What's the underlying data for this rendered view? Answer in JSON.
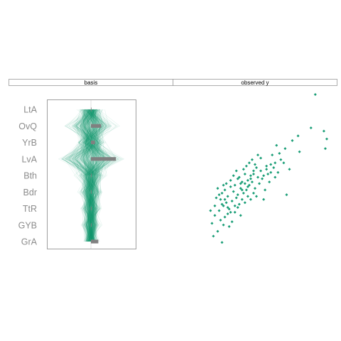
{
  "figure": {
    "accent_color": "#1b9e77",
    "bar_color": "#808080",
    "panel_border_color": "#888888",
    "strip_border_color": "#9a9a9a"
  },
  "chart_data": [
    {
      "type": "parallel-coordinates",
      "strip_title": "basis",
      "variables": [
        "LtA",
        "OvQ",
        "YrB",
        "LvA",
        "Bth",
        "Bdr",
        "TtR",
        "GYB",
        "GrA"
      ],
      "basis_values": [
        0.0,
        0.36,
        0.14,
        0.88,
        0.0,
        0.0,
        0.0,
        0.0,
        0.26
      ],
      "xlim": [
        -1,
        1
      ],
      "line_count": 400,
      "density_note": "lines concentrated near center; wide spread on OvQ and LvA",
      "spread": [
        0.35,
        0.75,
        0.45,
        0.95,
        0.4,
        0.35,
        0.3,
        0.28,
        0.24
      ]
    },
    {
      "type": "scatter",
      "strip_title": "observed y",
      "xlim": [
        0,
        10
      ],
      "ylim": [
        0,
        10
      ],
      "series": [
        {
          "color": "#1b9e77",
          "points": [
            [
              9.0,
              9.6
            ],
            [
              8.7,
              7.5
            ],
            [
              9.8,
              6.8
            ],
            [
              9.6,
              7.3
            ],
            [
              9.7,
              6.2
            ],
            [
              7.9,
              6.0
            ],
            [
              7.4,
              6.7
            ],
            [
              6.9,
              6.2
            ],
            [
              7.8,
              7.0
            ],
            [
              6.5,
              5.9
            ],
            [
              6.0,
              5.8
            ],
            [
              6.3,
              6.4
            ],
            [
              5.9,
              5.2
            ],
            [
              5.6,
              4.9
            ],
            [
              7.2,
              4.9
            ],
            [
              6.8,
              5.3
            ],
            [
              7.0,
              3.3
            ],
            [
              5.4,
              3.0
            ],
            [
              6.2,
              4.4
            ],
            [
              5.2,
              5.6
            ],
            [
              4.9,
              5.0
            ],
            [
              5.0,
              4.4
            ],
            [
              4.7,
              4.8
            ],
            [
              4.5,
              4.5
            ],
            [
              4.3,
              4.2
            ],
            [
              4.1,
              4.6
            ],
            [
              3.9,
              4.1
            ],
            [
              3.8,
              3.7
            ],
            [
              3.6,
              4.3
            ],
            [
              3.4,
              3.9
            ],
            [
              3.3,
              3.5
            ],
            [
              3.1,
              3.8
            ],
            [
              2.9,
              3.2
            ],
            [
              2.7,
              3.6
            ],
            [
              2.5,
              3.4
            ],
            [
              2.4,
              3.0
            ],
            [
              2.6,
              2.6
            ],
            [
              2.8,
              2.8
            ],
            [
              3.0,
              2.4
            ],
            [
              3.2,
              2.9
            ],
            [
              3.5,
              3.1
            ],
            [
              3.7,
              2.7
            ],
            [
              4.0,
              3.4
            ],
            [
              4.2,
              3.6
            ],
            [
              4.4,
              3.9
            ],
            [
              4.6,
              4.1
            ],
            [
              4.8,
              3.7
            ],
            [
              5.1,
              4.0
            ],
            [
              5.3,
              4.3
            ],
            [
              5.5,
              3.6
            ],
            [
              2.2,
              3.7
            ],
            [
              2.1,
              3.1
            ],
            [
              2.3,
              2.3
            ],
            [
              2.0,
              2.0
            ],
            [
              2.4,
              1.7
            ],
            [
              2.7,
              1.9
            ],
            [
              2.9,
              2.1
            ],
            [
              3.2,
              1.6
            ],
            [
              3.4,
              2.2
            ],
            [
              3.6,
              2.5
            ],
            [
              3.8,
              2.0
            ],
            [
              3.0,
              1.3
            ],
            [
              2.6,
              1.4
            ],
            [
              2.2,
              1.0
            ],
            [
              1.9,
              0.7
            ],
            [
              2.5,
              0.3
            ],
            [
              1.8,
              1.5
            ],
            [
              2.0,
              2.6
            ],
            [
              1.7,
              2.3
            ],
            [
              3.9,
              3.0
            ],
            [
              4.1,
              2.8
            ],
            [
              4.3,
              3.2
            ],
            [
              4.5,
              3.0
            ],
            [
              4.7,
              3.4
            ],
            [
              4.9,
              3.2
            ],
            [
              5.7,
              4.6
            ],
            [
              5.8,
              4.1
            ],
            [
              6.1,
              5.0
            ],
            [
              6.4,
              4.7
            ],
            [
              6.6,
              5.5
            ],
            [
              3.3,
              4.5
            ],
            [
              3.5,
              4.8
            ],
            [
              3.7,
              4.4
            ],
            [
              4.0,
              4.9
            ],
            [
              4.2,
              5.1
            ],
            [
              4.4,
              5.3
            ],
            [
              4.6,
              5.5
            ],
            [
              4.8,
              5.2
            ],
            [
              5.0,
              5.8
            ],
            [
              2.8,
              4.0
            ],
            [
              3.1,
              4.2
            ],
            [
              2.6,
              3.9
            ],
            [
              2.3,
              3.3
            ],
            [
              3.6,
              3.3
            ],
            [
              3.9,
              3.6
            ],
            [
              4.3,
              3.8
            ],
            [
              4.5,
              4.3
            ],
            [
              4.1,
              4.0
            ],
            [
              3.4,
              2.6
            ],
            [
              3.1,
              2.2
            ],
            [
              2.9,
              2.5
            ],
            [
              2.7,
              3.0
            ],
            [
              2.5,
              2.7
            ],
            [
              3.8,
              4.0
            ],
            [
              4.7,
              4.6
            ],
            [
              5.2,
              4.8
            ],
            [
              5.4,
              4.5
            ],
            [
              5.6,
              5.1
            ],
            [
              5.9,
              4.7
            ],
            [
              6.2,
              5.3
            ]
          ]
        }
      ]
    }
  ]
}
